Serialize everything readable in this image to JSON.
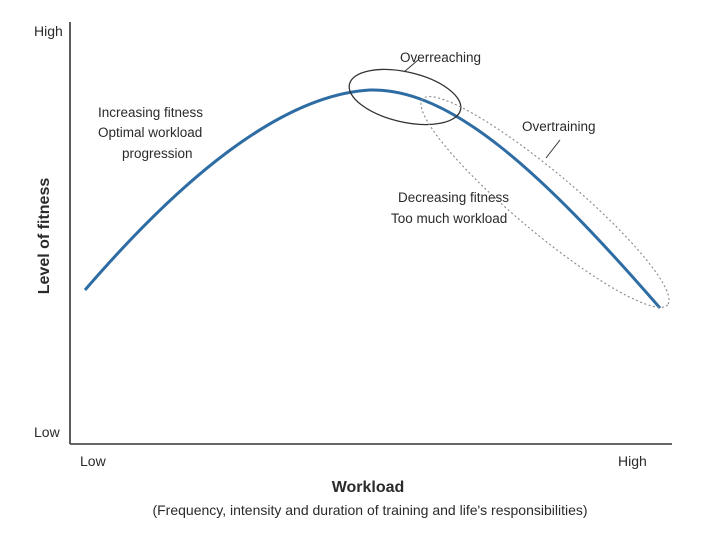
{
  "y_axis": {
    "title": "Level of fitness",
    "high": "High",
    "low": "Low"
  },
  "x_axis": {
    "title": "Workload",
    "subtitle": "(Frequency, intensity and duration of training and life's responsibilities)",
    "low": "Low",
    "high": "High"
  },
  "annotations": {
    "increasing_line1": "Increasing fitness",
    "increasing_line2": "Optimal workload",
    "increasing_line3": "progression",
    "overreaching": "Overreaching",
    "overtraining": "Overtraining",
    "decreasing_line1": "Decreasing fitness",
    "decreasing_line2": "Too much workload"
  },
  "colors": {
    "curve": "#2e6da4",
    "axis": "#333333",
    "ellipse": "#333333",
    "ellipse_dotted": "#888888"
  }
}
